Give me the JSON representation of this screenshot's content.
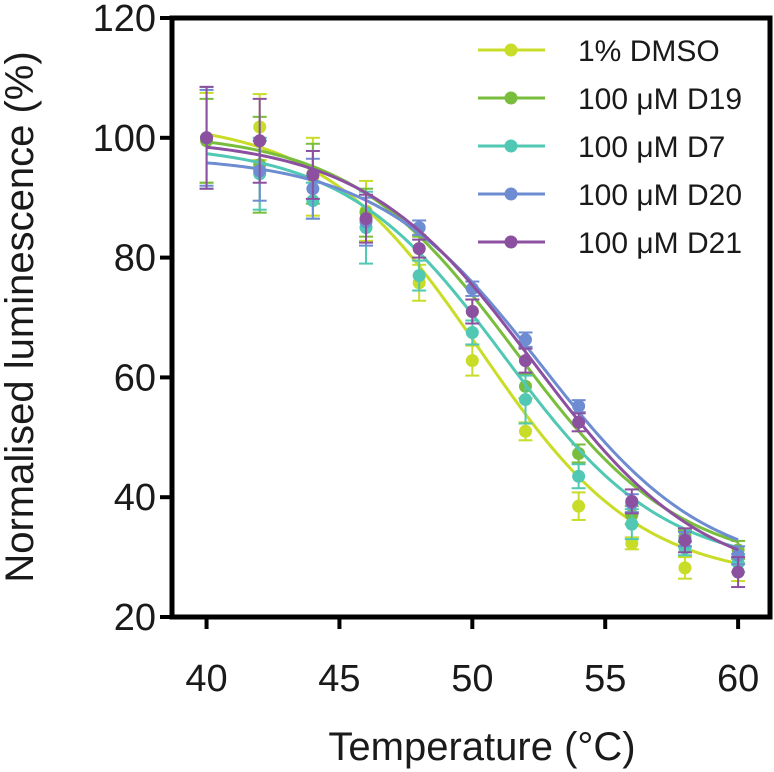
{
  "chart_data": {
    "type": "line",
    "title": "",
    "xlabel": "Temperature (°C)",
    "ylabel": "Normalised luminescence (%)",
    "xlim": [
      38.7,
      61.2
    ],
    "ylim": [
      20,
      120
    ],
    "xticks": [
      40,
      45,
      50,
      55,
      60
    ],
    "yticks": [
      20,
      40,
      60,
      80,
      100,
      120
    ],
    "legend_position": "top-right",
    "x": [
      40,
      42,
      44,
      46,
      48,
      50,
      52,
      54,
      56,
      58,
      60
    ],
    "series": [
      {
        "name": "1% DMSO",
        "color": "#c8dc28",
        "values": [
          100,
          101.8,
          93.5,
          87.8,
          75.8,
          62.8,
          51,
          38.5,
          32.3,
          28.2,
          27.5
        ],
        "errors": [
          7.5,
          5.5,
          6.5,
          5,
          3,
          2.5,
          1.5,
          2.3,
          1,
          1.8,
          1.5
        ],
        "fit": {
          "top": 103,
          "bottom": 26,
          "v50": 50.3,
          "slope": 3.0
        }
      },
      {
        "name": "100 μM D19",
        "color": "#78be3c",
        "values": [
          99.5,
          95.5,
          94,
          87.5,
          81.5,
          71,
          58.5,
          47.3,
          37,
          33.5,
          31.2
        ],
        "errors": [
          7,
          8,
          5,
          4,
          2,
          2,
          2,
          1.5,
          1.5,
          1,
          1.5
        ],
        "fit": {
          "top": 101,
          "bottom": 28,
          "v50": 51.6,
          "slope": 3.1
        }
      },
      {
        "name": "100 μM D7",
        "color": "#50c8b4",
        "values": [
          100,
          94,
          89.5,
          85,
          77,
          67.5,
          56.3,
          43.5,
          35.5,
          31.5,
          29
        ],
        "errors": [
          8.5,
          6,
          3,
          6,
          2.5,
          2,
          4,
          2,
          2.5,
          1.2,
          1.5
        ],
        "fit": {
          "top": 99,
          "bottom": 28,
          "v50": 51.2,
          "slope": 3.0
        }
      },
      {
        "name": "100 μM D20",
        "color": "#6e8cd2",
        "values": [
          100,
          94.5,
          91.5,
          86,
          85,
          74.8,
          66.3,
          55.2,
          39,
          33,
          30.3
        ],
        "errors": [
          8,
          5,
          5,
          4,
          1.2,
          1.2,
          1.2,
          1,
          1.5,
          1.2,
          1.5
        ],
        "fit": {
          "top": 97,
          "bottom": 27,
          "v50": 52.6,
          "slope": 3.1
        }
      },
      {
        "name": "100 μM D21",
        "color": "#8c50a0",
        "values": [
          100,
          99.5,
          93.8,
          86.5,
          81.5,
          71,
          62.8,
          52.5,
          39.3,
          32.8,
          27.5
        ],
        "errors": [
          8.5,
          7,
          4,
          4,
          1.5,
          2,
          2,
          1.5,
          2,
          2,
          2.5
        ],
        "fit": {
          "top": 100,
          "bottom": 25,
          "v50": 52.3,
          "slope": 3.2
        }
      }
    ]
  }
}
